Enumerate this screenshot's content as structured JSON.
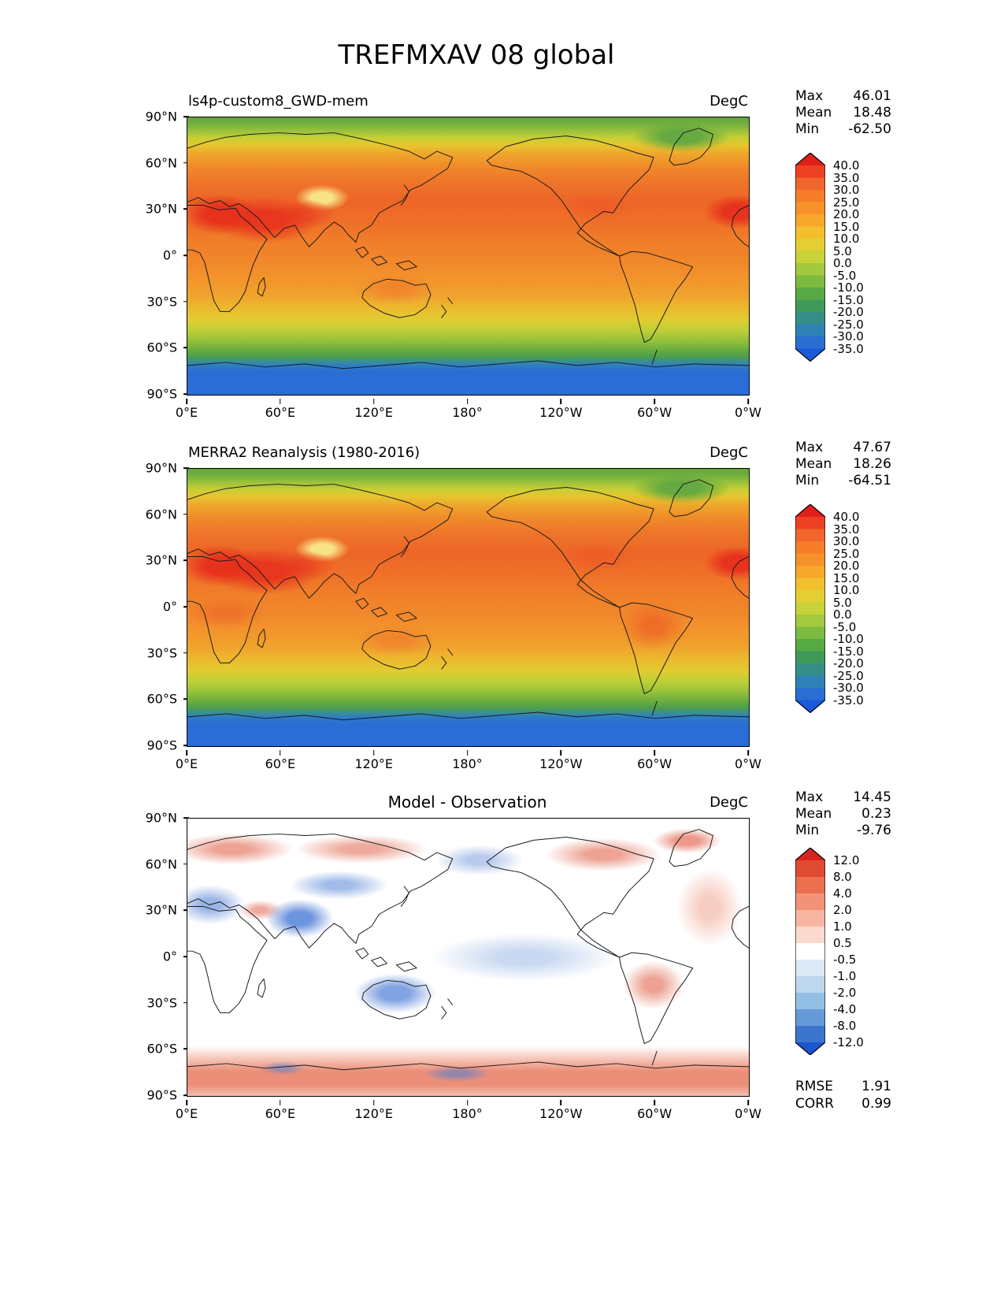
{
  "title": "TREFMXAV 08 global",
  "axes": {
    "y_ticks": [
      "90°N",
      "60°N",
      "30°N",
      "0°",
      "30°S",
      "60°S",
      "90°S"
    ],
    "x_ticks": [
      "0°E",
      "60°E",
      "120°E",
      "180°",
      "120°W",
      "60°W",
      "0°W"
    ]
  },
  "panels": [
    {
      "subtitle": "ls4p-custom8_GWD-mem",
      "units": "DegC",
      "stats": {
        "rows": [
          [
            "Max",
            "46.01"
          ],
          [
            "Mean",
            "18.48"
          ],
          [
            "Min",
            "-62.50"
          ]
        ]
      },
      "colorbar": {
        "tick_labels": [
          "40.0",
          "35.0",
          "30.0",
          "25.0",
          "20.0",
          "15.0",
          "10.0",
          "5.0",
          "0.0",
          "-5.0",
          "-10.0",
          "-15.0",
          "-20.0",
          "-25.0",
          "-30.0",
          "-35.0"
        ],
        "arrow_top": "#e01f1b",
        "arrow_bottom": "#1b59dd",
        "segment_colors": [
          "#ee4123",
          "#f2652c",
          "#f57d2a",
          "#f69229",
          "#f7a72c",
          "#f3bf2f",
          "#e3cf33",
          "#c7d339",
          "#a3c93e",
          "#7cba40",
          "#57a944",
          "#3f9a5a",
          "#368f87",
          "#2f82b5",
          "#2a6ed2"
        ]
      }
    },
    {
      "subtitle": "MERRA2 Reanalysis (1980-2016)",
      "units": "DegC",
      "stats": {
        "rows": [
          [
            "Max",
            "47.67"
          ],
          [
            "Mean",
            "18.26"
          ],
          [
            "Min",
            "-64.51"
          ]
        ]
      },
      "colorbar": {
        "tick_labels": [
          "40.0",
          "35.0",
          "30.0",
          "25.0",
          "20.0",
          "15.0",
          "10.0",
          "5.0",
          "0.0",
          "-5.0",
          "-10.0",
          "-15.0",
          "-20.0",
          "-25.0",
          "-30.0",
          "-35.0"
        ],
        "arrow_top": "#e01f1b",
        "arrow_bottom": "#1b59dd",
        "segment_colors": [
          "#ee4123",
          "#f2652c",
          "#f57d2a",
          "#f69229",
          "#f7a72c",
          "#f3bf2f",
          "#e3cf33",
          "#c7d339",
          "#a3c93e",
          "#7cba40",
          "#57a944",
          "#3f9a5a",
          "#368f87",
          "#2f82b5",
          "#2a6ed2"
        ]
      }
    },
    {
      "subtitle": "Model - Observation",
      "units": "DegC",
      "stats": {
        "rows": [
          [
            "Max",
            "14.45"
          ],
          [
            "Mean",
            "0.23"
          ],
          [
            "Min",
            "-9.76"
          ]
        ]
      },
      "colorbar": {
        "tick_labels": [
          "12.0",
          "8.0",
          "4.0",
          "2.0",
          "1.0",
          "0.5",
          "-0.5",
          "-1.0",
          "-2.0",
          "-4.0",
          "-8.0",
          "-12.0"
        ],
        "arrow_top": "#d7251d",
        "arrow_bottom": "#1c55d2",
        "segment_colors": [
          "#e04b33",
          "#ea7050",
          "#f29378",
          "#f7b6a2",
          "#fbd9cd",
          "#ffffff",
          "#dce9f6",
          "#bdd7ef",
          "#94bfe5",
          "#6699d8",
          "#3b76cc"
        ]
      },
      "extra_stats": {
        "rows": [
          [
            "RMSE",
            "1.91"
          ],
          [
            "CORR",
            "0.99"
          ]
        ]
      }
    }
  ],
  "chart_data": [
    {
      "type": "heatmap",
      "variable": "TREFMXAV",
      "title": "ls4p-custom8_GWD-mem",
      "units": "DegC",
      "projection": "lon-lat global map",
      "lon_range": [
        0,
        360
      ],
      "lat_range": [
        -90,
        90
      ],
      "contour_levels": [
        -35,
        -30,
        -25,
        -20,
        -15,
        -10,
        -5,
        0,
        5,
        10,
        15,
        20,
        25,
        30,
        35,
        40
      ],
      "stats": {
        "max": 46.01,
        "mean": 18.48,
        "min": -62.5
      }
    },
    {
      "type": "heatmap",
      "variable": "TREFMXAV",
      "title": "MERRA2 Reanalysis (1980-2016)",
      "units": "DegC",
      "projection": "lon-lat global map",
      "lon_range": [
        0,
        360
      ],
      "lat_range": [
        -90,
        90
      ],
      "contour_levels": [
        -35,
        -30,
        -25,
        -20,
        -15,
        -10,
        -5,
        0,
        5,
        10,
        15,
        20,
        25,
        30,
        35,
        40
      ],
      "stats": {
        "max": 47.67,
        "mean": 18.26,
        "min": -64.51
      }
    },
    {
      "type": "heatmap",
      "variable": "TREFMXAV difference",
      "title": "Model - Observation",
      "units": "DegC",
      "projection": "lon-lat global map",
      "lon_range": [
        0,
        360
      ],
      "lat_range": [
        -90,
        90
      ],
      "contour_levels": [
        -12,
        -8,
        -4,
        -2,
        -1,
        -0.5,
        0.5,
        1,
        2,
        4,
        8,
        12
      ],
      "stats": {
        "max": 14.45,
        "mean": 0.23,
        "min": -9.76,
        "rmse": 1.91,
        "corr": 0.99
      }
    }
  ]
}
